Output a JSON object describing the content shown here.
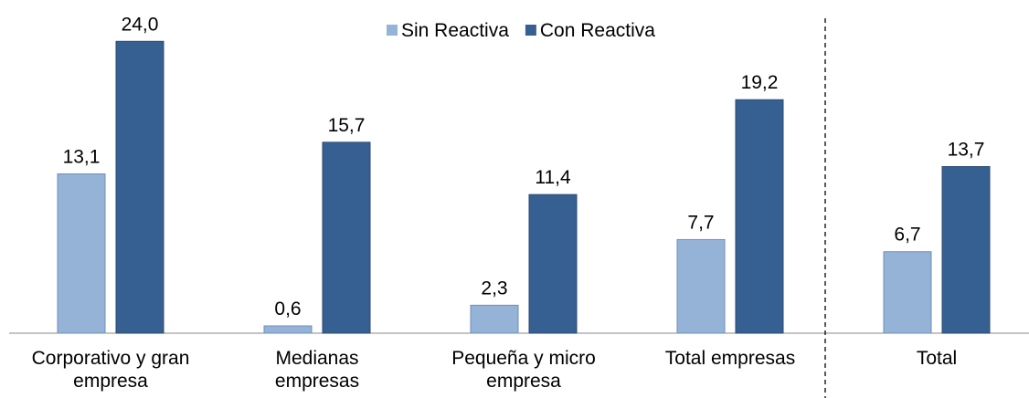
{
  "chart_data": {
    "type": "bar",
    "categories": [
      "Corporativo y gran empresa",
      "Medianas empresas",
      "Pequeña y micro empresa",
      "Total empresas",
      "Total"
    ],
    "series": [
      {
        "name": "Sin Reactiva",
        "color": "#95b3d7",
        "values": [
          13.1,
          0.6,
          2.3,
          7.7,
          6.7
        ],
        "value_labels": [
          "13,1",
          "0,6",
          "2,3",
          "7,7",
          "6,7"
        ]
      },
      {
        "name": "Con Reactiva",
        "color": "#376092",
        "values": [
          24.0,
          15.7,
          11.4,
          19.2,
          13.7
        ],
        "value_labels": [
          "24,0",
          "15,7",
          "11,4",
          "19,2",
          "13,7"
        ]
      }
    ],
    "ylim": [
      0,
      27.4
    ]
  }
}
